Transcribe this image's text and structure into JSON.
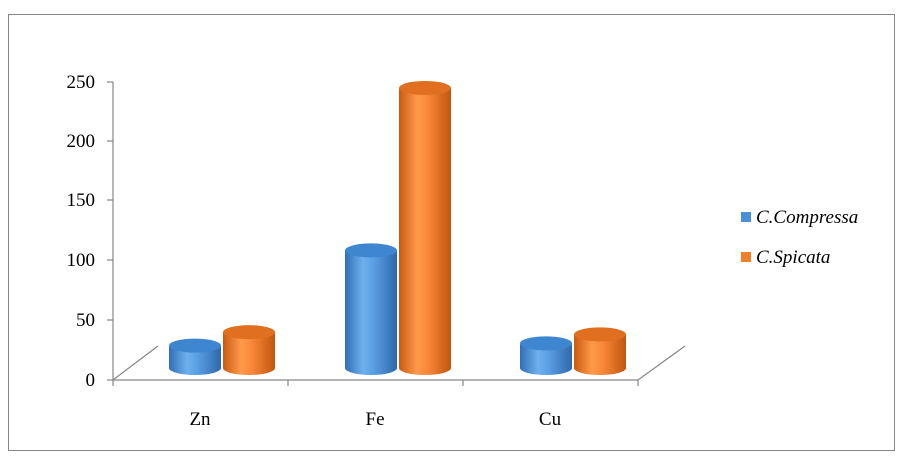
{
  "chart_data": {
    "type": "bar",
    "style": "3d-cylinder",
    "categories": [
      "Zn",
      "Fe",
      "Cu"
    ],
    "series": [
      {
        "name": "C.Compressa",
        "values": [
          20,
          105,
          22
        ],
        "color": "#4a90d9"
      },
      {
        "name": "C.Spicata",
        "values": [
          32,
          250,
          30
        ],
        "color": "#f07f2a"
      }
    ],
    "y_ticks": [
      "0",
      "50",
      "100",
      "150",
      "200",
      "250"
    ],
    "ylim": [
      0,
      250
    ],
    "grid": false,
    "legend_position": "right"
  }
}
